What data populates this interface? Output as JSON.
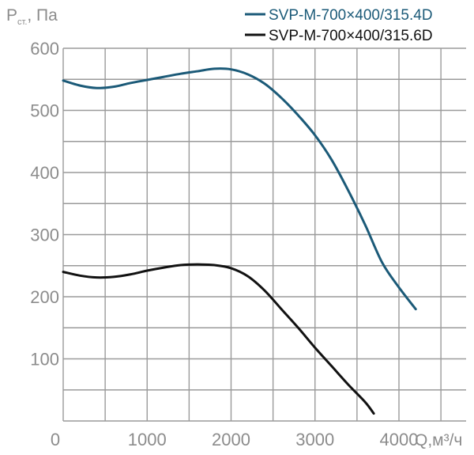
{
  "chart_data": {
    "type": "line",
    "ylabel": {
      "main": "P",
      "sub": "ст.",
      "unit": ", Па"
    },
    "xlabel": "Q,м³/ч",
    "xlim": [
      0,
      4800
    ],
    "ylim": [
      0,
      600
    ],
    "x_ticks": [
      "0",
      "1000",
      "2000",
      "3000",
      "4000"
    ],
    "y_ticks": [
      "100",
      "200",
      "300",
      "400",
      "500",
      "600"
    ],
    "grid": true,
    "legend_position": "top-right",
    "series": [
      {
        "name": "SVP-M-700×400/315.4D",
        "color": "#1b5a78",
        "points": [
          [
            0,
            548
          ],
          [
            200,
            540
          ],
          [
            400,
            536
          ],
          [
            600,
            538
          ],
          [
            800,
            544
          ],
          [
            1000,
            549
          ],
          [
            1200,
            554
          ],
          [
            1400,
            559
          ],
          [
            1600,
            563
          ],
          [
            1800,
            567
          ],
          [
            2000,
            566
          ],
          [
            2200,
            558
          ],
          [
            2400,
            543
          ],
          [
            2600,
            520
          ],
          [
            2800,
            492
          ],
          [
            3000,
            460
          ],
          [
            3200,
            420
          ],
          [
            3400,
            370
          ],
          [
            3600,
            315
          ],
          [
            3800,
            255
          ],
          [
            4000,
            215
          ],
          [
            4200,
            180
          ]
        ]
      },
      {
        "name": "SVP-M-700×400/315.6D",
        "color": "#111111",
        "points": [
          [
            0,
            240
          ],
          [
            200,
            234
          ],
          [
            400,
            231
          ],
          [
            600,
            232
          ],
          [
            800,
            236
          ],
          [
            1000,
            242
          ],
          [
            1200,
            247
          ],
          [
            1400,
            251
          ],
          [
            1600,
            252
          ],
          [
            1800,
            251
          ],
          [
            2000,
            246
          ],
          [
            2200,
            233
          ],
          [
            2400,
            210
          ],
          [
            2600,
            180
          ],
          [
            2800,
            150
          ],
          [
            3000,
            118
          ],
          [
            3200,
            88
          ],
          [
            3400,
            58
          ],
          [
            3600,
            30
          ],
          [
            3700,
            12
          ]
        ]
      }
    ]
  }
}
